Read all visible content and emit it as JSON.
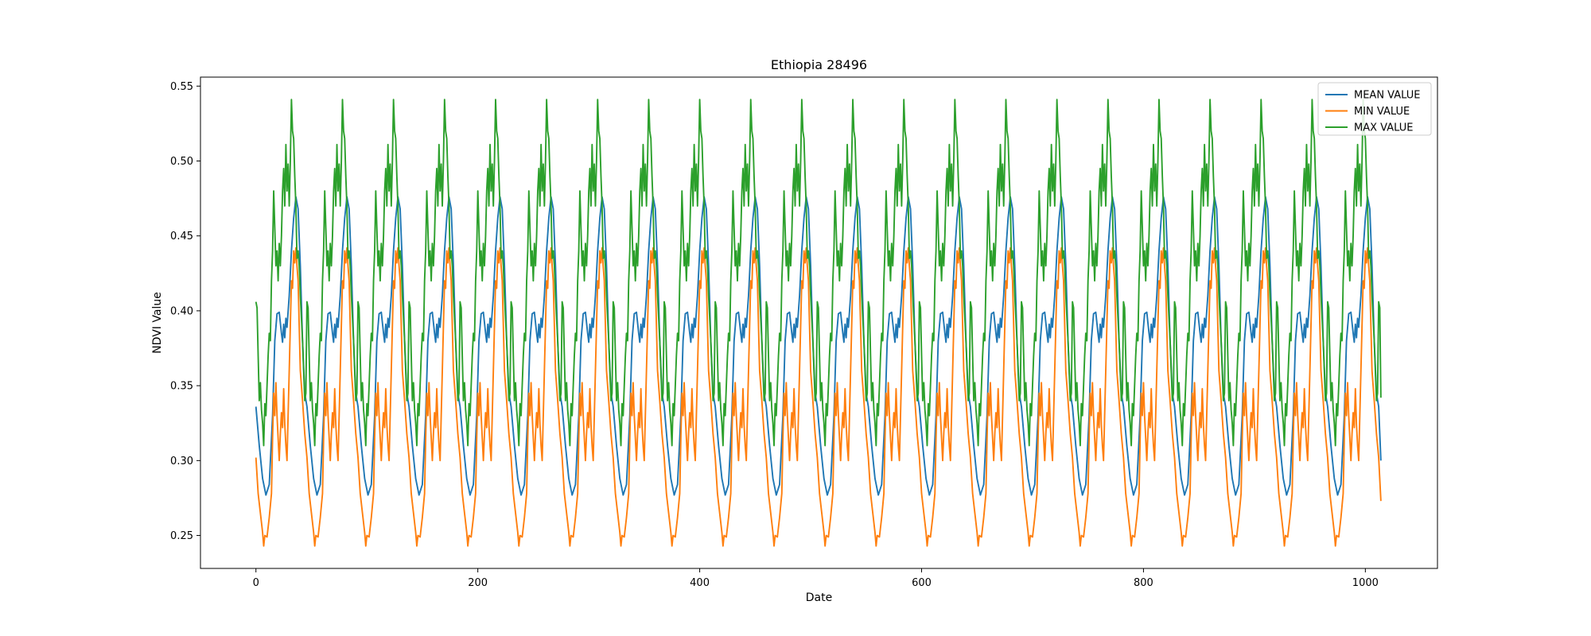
{
  "chart_data": {
    "type": "line",
    "title": "Ethiopia 28496",
    "xlabel": "Date",
    "ylabel": "NDVI Value",
    "xlim": [
      -50,
      1065
    ],
    "ylim": [
      0.228,
      0.556
    ],
    "x_ticks": [
      0,
      200,
      400,
      600,
      800,
      1000
    ],
    "y_ticks": [
      0.25,
      0.3,
      0.35,
      0.4,
      0.45,
      0.5,
      0.55
    ],
    "x_tick_labels": [
      "0",
      "200",
      "400",
      "600",
      "800",
      "1000"
    ],
    "y_tick_labels": [
      "0.25",
      "0.30",
      "0.35",
      "0.40",
      "0.45",
      "0.50",
      "0.55"
    ],
    "legend_position": "top-right",
    "grid": false,
    "period": 46,
    "x_range": [
      0,
      1014
    ],
    "series": [
      {
        "name": "MEAN VALUE",
        "color": "#1f77b4",
        "cycle": [
          [
            0,
            0.336
          ],
          [
            3,
            0.31
          ],
          [
            6,
            0.288
          ],
          [
            9,
            0.277
          ],
          [
            12,
            0.284
          ],
          [
            15,
            0.33
          ],
          [
            17,
            0.38
          ],
          [
            19,
            0.398
          ],
          [
            21,
            0.399
          ],
          [
            23,
            0.385
          ],
          [
            24,
            0.379
          ],
          [
            25,
            0.391
          ],
          [
            26,
            0.382
          ],
          [
            27,
            0.395
          ],
          [
            28,
            0.389
          ],
          [
            30,
            0.41
          ],
          [
            32,
            0.44
          ],
          [
            34,
            0.462
          ],
          [
            36,
            0.476
          ],
          [
            38,
            0.468
          ],
          [
            40,
            0.43
          ],
          [
            42,
            0.38
          ],
          [
            44,
            0.345
          ],
          [
            46,
            0.336
          ]
        ],
        "end": 0.3
      },
      {
        "name": "MIN VALUE",
        "color": "#ff7f0e",
        "cycle": [
          [
            0,
            0.302
          ],
          [
            2,
            0.278
          ],
          [
            4,
            0.265
          ],
          [
            6,
            0.252
          ],
          [
            7,
            0.243
          ],
          [
            8,
            0.25
          ],
          [
            10,
            0.249
          ],
          [
            12,
            0.262
          ],
          [
            14,
            0.278
          ],
          [
            15,
            0.315
          ],
          [
            16,
            0.345
          ],
          [
            17,
            0.33
          ],
          [
            18,
            0.352
          ],
          [
            19,
            0.33
          ],
          [
            20,
            0.315
          ],
          [
            21,
            0.3
          ],
          [
            22,
            0.318
          ],
          [
            23,
            0.332
          ],
          [
            24,
            0.322
          ],
          [
            25,
            0.348
          ],
          [
            26,
            0.324
          ],
          [
            27,
            0.31
          ],
          [
            28,
            0.3
          ],
          [
            29,
            0.33
          ],
          [
            30,
            0.36
          ],
          [
            31,
            0.39
          ],
          [
            32,
            0.42
          ],
          [
            33,
            0.415
          ],
          [
            34,
            0.44
          ],
          [
            35,
            0.432
          ],
          [
            36,
            0.442
          ],
          [
            37,
            0.43
          ],
          [
            38,
            0.42
          ],
          [
            39,
            0.39
          ],
          [
            40,
            0.36
          ],
          [
            42,
            0.34
          ],
          [
            44,
            0.318
          ],
          [
            46,
            0.302
          ]
        ],
        "end": 0.273
      },
      {
        "name": "MAX VALUE",
        "color": "#2ca02c",
        "cycle": [
          [
            0,
            0.406
          ],
          [
            1,
            0.402
          ],
          [
            2,
            0.37
          ],
          [
            3,
            0.34
          ],
          [
            4,
            0.352
          ],
          [
            5,
            0.334
          ],
          [
            6,
            0.325
          ],
          [
            7,
            0.31
          ],
          [
            8,
            0.338
          ],
          [
            9,
            0.33
          ],
          [
            10,
            0.35
          ],
          [
            11,
            0.37
          ],
          [
            12,
            0.385
          ],
          [
            13,
            0.38
          ],
          [
            14,
            0.42
          ],
          [
            15,
            0.44
          ],
          [
            16,
            0.48
          ],
          [
            17,
            0.455
          ],
          [
            18,
            0.43
          ],
          [
            19,
            0.44
          ],
          [
            20,
            0.42
          ],
          [
            21,
            0.445
          ],
          [
            22,
            0.43
          ],
          [
            23,
            0.45
          ],
          [
            24,
            0.48
          ],
          [
            25,
            0.495
          ],
          [
            26,
            0.47
          ],
          [
            27,
            0.511
          ],
          [
            28,
            0.48
          ],
          [
            29,
            0.498
          ],
          [
            30,
            0.47
          ],
          [
            31,
            0.5
          ],
          [
            32,
            0.541
          ],
          [
            33,
            0.52
          ],
          [
            34,
            0.515
          ],
          [
            35,
            0.49
          ],
          [
            36,
            0.47
          ],
          [
            37,
            0.435
          ],
          [
            38,
            0.44
          ],
          [
            39,
            0.43
          ],
          [
            40,
            0.41
          ],
          [
            41,
            0.395
          ],
          [
            42,
            0.38
          ],
          [
            43,
            0.36
          ],
          [
            44,
            0.34
          ],
          [
            45,
            0.345
          ],
          [
            46,
            0.406
          ]
        ],
        "end": 0.342
      }
    ]
  }
}
